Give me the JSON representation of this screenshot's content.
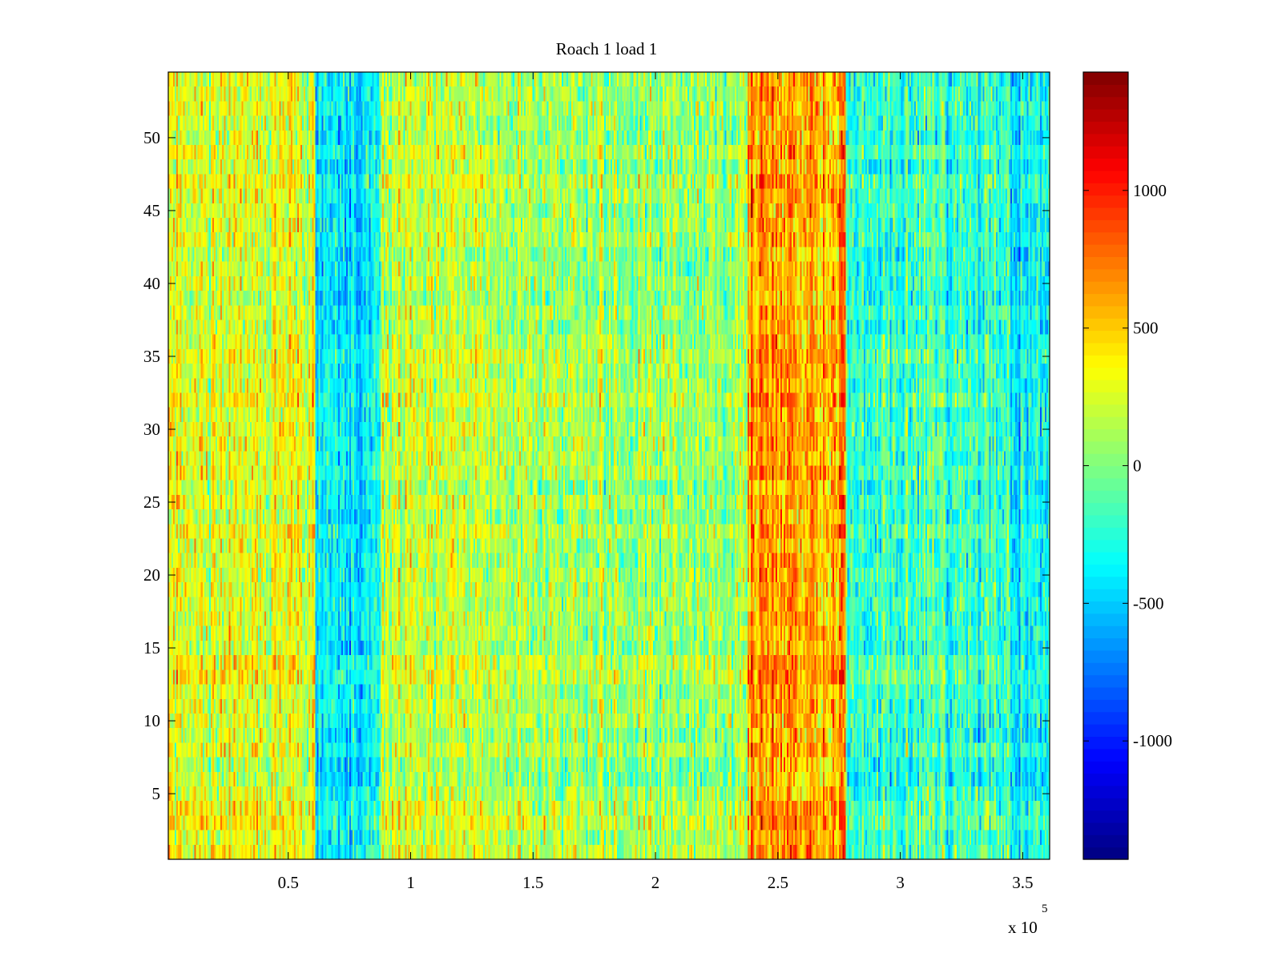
{
  "chart_data": {
    "type": "heatmap",
    "title": "Roach 1 load 1",
    "xlabel": "",
    "ylabel": "",
    "x_range": [
      1000,
      361000
    ],
    "y_range": [
      0.5,
      54.5
    ],
    "rows": 54,
    "x_exponent_label": "x 10",
    "x_exponent_power": "5",
    "x_ticks": [
      {
        "value": 50000,
        "label": "0.5"
      },
      {
        "value": 100000,
        "label": "1"
      },
      {
        "value": 150000,
        "label": "1.5"
      },
      {
        "value": 200000,
        "label": "2"
      },
      {
        "value": 250000,
        "label": "2.5"
      },
      {
        "value": 300000,
        "label": "3"
      },
      {
        "value": 350000,
        "label": "3.5"
      }
    ],
    "y_ticks": [
      {
        "value": 5,
        "label": "5"
      },
      {
        "value": 10,
        "label": "10"
      },
      {
        "value": 15,
        "label": "15"
      },
      {
        "value": 20,
        "label": "20"
      },
      {
        "value": 25,
        "label": "25"
      },
      {
        "value": 30,
        "label": "30"
      },
      {
        "value": 35,
        "label": "35"
      },
      {
        "value": 40,
        "label": "40"
      },
      {
        "value": 45,
        "label": "45"
      },
      {
        "value": 50,
        "label": "50"
      }
    ],
    "colormap": "jet",
    "clim": [
      -1430,
      1430
    ],
    "colorbar_ticks": [
      {
        "value": 1000,
        "label": "1000"
      },
      {
        "value": 500,
        "label": "500"
      },
      {
        "value": 0,
        "label": "0"
      },
      {
        "value": -500,
        "label": "-500"
      },
      {
        "value": -1000,
        "label": "-1000"
      }
    ],
    "column_profile": [
      {
        "x_start": 1000,
        "x_end": 61000,
        "mean": 250,
        "spread": 200
      },
      {
        "x_start": 61000,
        "x_end": 88000,
        "mean": -400,
        "spread": 180
      },
      {
        "x_start": 88000,
        "x_end": 150000,
        "mean": 200,
        "spread": 190
      },
      {
        "x_start": 150000,
        "x_end": 238000,
        "mean": 80,
        "spread": 200
      },
      {
        "x_start": 238000,
        "x_end": 278000,
        "mean": 620,
        "spread": 220
      },
      {
        "x_start": 278000,
        "x_end": 345000,
        "mean": -220,
        "spread": 200
      },
      {
        "x_start": 345000,
        "x_end": 361000,
        "mean": -400,
        "spread": 190
      }
    ]
  }
}
